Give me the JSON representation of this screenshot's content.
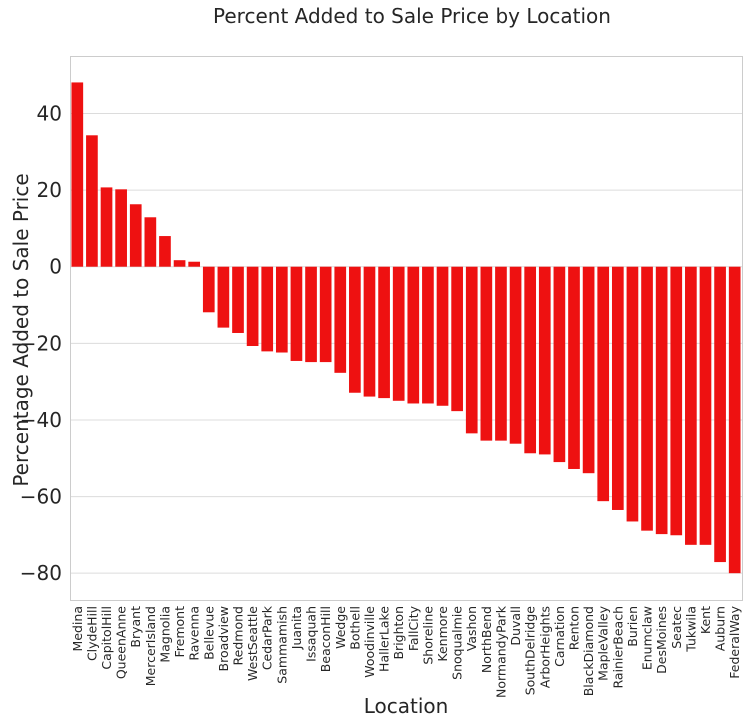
{
  "chart_data": {
    "type": "bar",
    "title": "Percent Added to Sale Price by Location",
    "xlabel": "Location",
    "ylabel": "Percentage Added to Sale Price",
    "ylim": [
      -87,
      55
    ],
    "yticks": [
      40,
      20,
      0,
      -20,
      -40,
      -60,
      -80
    ],
    "ytick_labels": [
      "40",
      "20",
      "0",
      "−20",
      "−40",
      "−60",
      "−80"
    ],
    "grid": true,
    "bar_color": "#ee1111",
    "categories": [
      "Medina",
      "ClydeHill",
      "CapitolHill",
      "QueenAnne",
      "Bryant",
      "MercerIsland",
      "Magnolia",
      "Fremont",
      "Ravenna",
      "Bellevue",
      "Broadview",
      "Redmond",
      "WestSeattle",
      "CedarPark",
      "Sammamish",
      "Juanita",
      "Issaquah",
      "BeaconHill",
      "Wedge",
      "Bothell",
      "Woodinville",
      "HallerLake",
      "Brighton",
      "FallCity",
      "Shoreline",
      "Kenmore",
      "Snoqualmie",
      "Vashon",
      "NorthBend",
      "NormandyPark",
      "Duvall",
      "SouthDelridge",
      "ArborHeights",
      "Carnation",
      "Renton",
      "BlackDiamond",
      "MapleValley",
      "RainierBeach",
      "Burien",
      "Enumclaw",
      "DesMoines",
      "Seatec",
      "Tukwila",
      "Kent",
      "Auburn",
      "FederalWay"
    ],
    "values": [
      48.1,
      34.3,
      20.7,
      20.2,
      16.3,
      12.9,
      8.0,
      1.7,
      1.3,
      -11.9,
      -15.9,
      -17.3,
      -20.7,
      -22.1,
      -22.4,
      -24.6,
      -24.9,
      -24.9,
      -27.7,
      -32.9,
      -33.9,
      -34.3,
      -35.0,
      -35.7,
      -35.7,
      -36.3,
      -37.7,
      -43.5,
      -45.4,
      -45.4,
      -46.2,
      -48.7,
      -49.0,
      -51.0,
      -52.8,
      -53.9,
      -61.2,
      -63.5,
      -66.5,
      -68.9,
      -69.8,
      -70.1,
      -72.6,
      -72.6,
      -77.1,
      -80.0
    ]
  }
}
